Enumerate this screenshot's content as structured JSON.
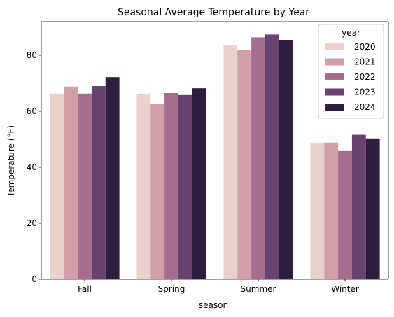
{
  "chart_data": {
    "type": "bar",
    "title": "Seasonal Average Temperature by Year",
    "xlabel": "season",
    "ylabel": "Temperature (°F)",
    "categories": [
      "Fall",
      "Spring",
      "Summer",
      "Winter"
    ],
    "ylim": [
      0,
      92
    ],
    "yticks": [
      0,
      20,
      40,
      60,
      80
    ],
    "grid": false,
    "legend": {
      "title": "year",
      "placement": "top-right"
    },
    "series": [
      {
        "name": "2020",
        "color": "#e9d2cb",
        "values": [
          66.3,
          66.2,
          83.7,
          48.6
        ]
      },
      {
        "name": "2021",
        "color": "#d0a0aa",
        "values": [
          68.8,
          62.7,
          82.0,
          48.8
        ]
      },
      {
        "name": "2022",
        "color": "#a46e8e",
        "values": [
          66.3,
          66.5,
          86.4,
          45.8
        ]
      },
      {
        "name": "2023",
        "color": "#694370",
        "values": [
          69.0,
          65.8,
          87.4,
          51.6
        ]
      },
      {
        "name": "2024",
        "color": "#2d1e3d",
        "values": [
          72.2,
          68.2,
          85.5,
          50.3
        ]
      }
    ]
  }
}
